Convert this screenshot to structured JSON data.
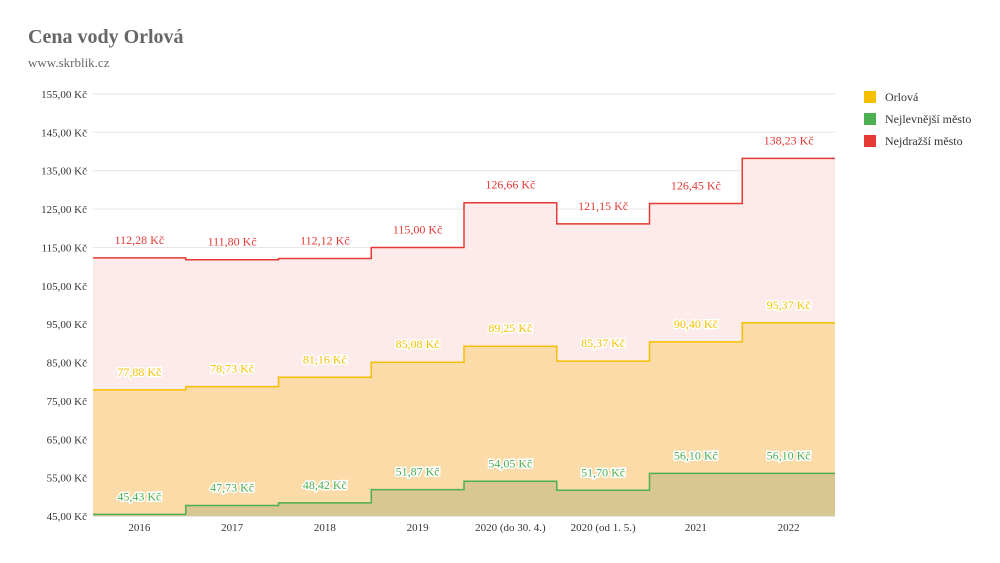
{
  "title": "Cena vody Orlová",
  "subtitle": "www.skrblik.cz",
  "chart_data": {
    "type": "area",
    "step": true,
    "title": "Cena vody Orlová",
    "subtitle": "www.skrblik.cz",
    "xlabel": "",
    "ylabel": "",
    "ylim": [
      45,
      155
    ],
    "y_ticks": [
      45,
      55,
      65,
      75,
      85,
      95,
      105,
      115,
      125,
      135,
      145,
      155
    ],
    "y_tick_labels": [
      "45,00 Kč",
      "55,00 Kč",
      "65,00 Kč",
      "75,00 Kč",
      "85,00 Kč",
      "95,00 Kč",
      "105,00 Kč",
      "115,00 Kč",
      "125,00 Kč",
      "135,00 Kč",
      "145,00 Kč",
      "155,00 Kč"
    ],
    "grid": true,
    "legend_position": "right",
    "categories": [
      "2016",
      "2017",
      "2018",
      "2019",
      "2020 (do 30. 4.)",
      "2020 (od 1. 5.)",
      "2021",
      "2022"
    ],
    "series": [
      {
        "name": "Orlová",
        "color": "#f5c000",
        "values": [
          77.88,
          78.73,
          81.16,
          85.08,
          89.25,
          85.37,
          90.4,
          95.37
        ],
        "labels": [
          "77,88 Kč",
          "78,73 Kč",
          "81,16 Kč",
          "85,08 Kč",
          "89,25 Kč",
          "85,37 Kč",
          "90,40 Kč",
          "95,37 Kč"
        ]
      },
      {
        "name": "Nejlevnější město",
        "color": "#4caf50",
        "values": [
          45.43,
          47.73,
          48.42,
          51.87,
          54.05,
          51.7,
          56.1,
          56.1
        ],
        "labels": [
          "45,43 Kč",
          "47,73 Kč",
          "48,42 Kč",
          "51,87 Kč",
          "54,05 Kč",
          "51,70 Kč",
          "56,10 Kč",
          "56,10 Kč"
        ]
      },
      {
        "name": "Nejdražší město",
        "color": "#e53935",
        "values": [
          112.28,
          111.8,
          112.12,
          115.0,
          126.66,
          121.15,
          126.45,
          138.23
        ],
        "labels": [
          "112,28 Kč",
          "111,80 Kč",
          "112,12 Kč",
          "115,00 Kč",
          "126,66 Kč",
          "121,15 Kč",
          "126,45 Kč",
          "138,23 Kč"
        ]
      }
    ]
  }
}
